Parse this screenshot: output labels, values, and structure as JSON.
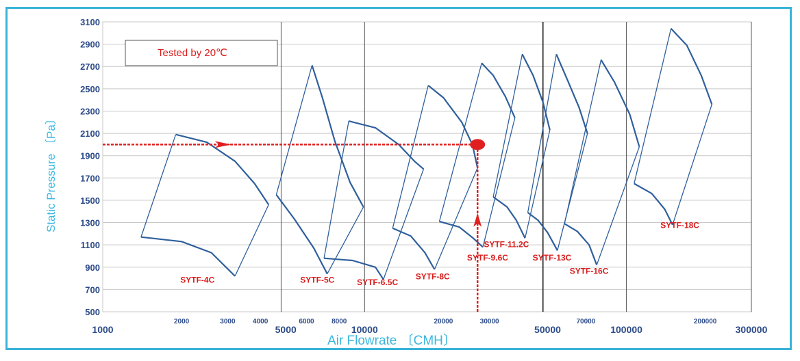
{
  "chart_data": {
    "type": "line",
    "title": "",
    "xlabel": "Air Flowrate 〔CMH〕",
    "ylabel": "Static Pressure 〔Pa〕",
    "xscale": "log",
    "xlim": [
      1000,
      300000
    ],
    "ylim": [
      500,
      3100
    ],
    "grid": true,
    "y_ticks": [
      "500",
      "700",
      "900",
      "1100",
      "1300",
      "1500",
      "1700",
      "1900",
      "2100",
      "2300",
      "2500",
      "2700",
      "2900",
      "3100"
    ],
    "x_major_ticks": [
      {
        "label": "1000",
        "value": 1000
      },
      {
        "label": "5000",
        "value": 5000
      },
      {
        "label": "10000",
        "value": 10000
      },
      {
        "label": "50000",
        "value": 50000
      },
      {
        "label": "100000",
        "value": 100000
      },
      {
        "label": "300000",
        "value": 300000
      }
    ],
    "x_minor_ticks": [
      {
        "label": "2000",
        "value": 2000
      },
      {
        "label": "3000",
        "value": 3000
      },
      {
        "label": "4000",
        "value": 4000
      },
      {
        "label": "6000",
        "value": 6000
      },
      {
        "label": "8000",
        "value": 8000
      },
      {
        "label": "20000",
        "value": 20000
      },
      {
        "label": "30000",
        "value": 30000
      },
      {
        "label": "70000",
        "value": 70000
      },
      {
        "label": "200000",
        "value": 200000
      }
    ],
    "vertical_gridlines": [
      4800,
      10000,
      48000,
      100000,
      300000
    ],
    "annotation": "Tested  by 20℃",
    "series": [
      {
        "name": "SYTF-4C",
        "label_at": [
          2300,
          760
        ],
        "upper": [
          [
            1900,
            2090
          ],
          [
            2500,
            2020
          ],
          [
            3200,
            1850
          ],
          [
            3800,
            1650
          ],
          [
            4300,
            1460
          ]
        ],
        "lower": [
          [
            1400,
            1170
          ],
          [
            2000,
            1130
          ],
          [
            2600,
            1030
          ],
          [
            3200,
            820
          ]
        ]
      },
      {
        "name": "SYTF-5C",
        "label_at": [
          6600,
          760
        ],
        "upper": [
          [
            6300,
            2710
          ],
          [
            6900,
            2420
          ],
          [
            7700,
            2030
          ],
          [
            8800,
            1660
          ],
          [
            9900,
            1440
          ]
        ],
        "lower": [
          [
            4600,
            1550
          ],
          [
            5400,
            1330
          ],
          [
            6400,
            1070
          ],
          [
            7200,
            840
          ]
        ]
      },
      {
        "name": "SYTF-6.5C",
        "label_at": [
          11200,
          740
        ],
        "upper": [
          [
            8700,
            2210
          ],
          [
            11000,
            2150
          ],
          [
            13500,
            2000
          ],
          [
            15500,
            1850
          ],
          [
            16800,
            1780
          ]
        ],
        "lower": [
          [
            7000,
            980
          ],
          [
            9000,
            960
          ],
          [
            11000,
            900
          ],
          [
            11800,
            790
          ]
        ]
      },
      {
        "name": "SYTF-8C",
        "label_at": [
          18200,
          790
        ],
        "upper": [
          [
            17500,
            2530
          ],
          [
            20000,
            2420
          ],
          [
            23500,
            2200
          ],
          [
            25800,
            2000
          ],
          [
            27000,
            1790
          ]
        ],
        "lower": [
          [
            12800,
            1250
          ],
          [
            15000,
            1180
          ],
          [
            17000,
            1030
          ],
          [
            18500,
            880
          ]
        ]
      },
      {
        "name": "SYTF-9.6C",
        "label_at": [
          29500,
          960
        ],
        "upper": [
          [
            28000,
            2730
          ],
          [
            31000,
            2620
          ],
          [
            34500,
            2430
          ],
          [
            37500,
            2240
          ]
        ],
        "lower": [
          [
            19300,
            1310
          ],
          [
            23000,
            1260
          ],
          [
            26000,
            1160
          ],
          [
            28300,
            1080
          ]
        ]
      },
      {
        "name": "SYTF-11.2C",
        "label_at": [
          34800,
          1080
        ],
        "upper": [
          [
            40000,
            2810
          ],
          [
            44000,
            2620
          ],
          [
            48000,
            2380
          ],
          [
            51000,
            2130
          ]
        ],
        "lower": [
          [
            31000,
            1530
          ],
          [
            35000,
            1440
          ],
          [
            38000,
            1320
          ],
          [
            41000,
            1160
          ]
        ]
      },
      {
        "name": "SYTF-13C",
        "label_at": [
          52000,
          960
        ],
        "upper": [
          [
            54000,
            2810
          ],
          [
            60000,
            2560
          ],
          [
            66000,
            2330
          ],
          [
            71000,
            2100
          ]
        ],
        "lower": [
          [
            42000,
            1390
          ],
          [
            46000,
            1320
          ],
          [
            50000,
            1210
          ],
          [
            54500,
            1050
          ]
        ]
      },
      {
        "name": "SYTF-16C",
        "label_at": [
          72000,
          840
        ],
        "upper": [
          [
            80000,
            2760
          ],
          [
            90000,
            2560
          ],
          [
            103000,
            2270
          ],
          [
            112000,
            1980
          ]
        ],
        "lower": [
          [
            58000,
            1290
          ],
          [
            65000,
            1220
          ],
          [
            72000,
            1100
          ],
          [
            77000,
            920
          ]
        ]
      },
      {
        "name": "SYTF-18C",
        "label_at": [
          160000,
          1250
        ],
        "upper": [
          [
            148000,
            3040
          ],
          [
            170000,
            2890
          ],
          [
            193000,
            2620
          ],
          [
            212000,
            2360
          ]
        ],
        "lower": [
          [
            107000,
            1650
          ],
          [
            125000,
            1560
          ],
          [
            140000,
            1420
          ],
          [
            150000,
            1280
          ]
        ]
      }
    ],
    "example_selection": {
      "operating_point": [
        27000,
        2000
      ],
      "horizontal_from": [
        1000,
        2000
      ],
      "vertical_from": [
        27000,
        500
      ]
    }
  },
  "colors": {
    "curve": "#2f5f9c",
    "guide": "#e02020",
    "model_label": "#d91c1c",
    "axis_tick": "#2b4a88",
    "axis_title": "#3ab7df",
    "grid_light": "#c8c8c8",
    "grid_dark": "#555555",
    "frame": "#39b3d8"
  }
}
